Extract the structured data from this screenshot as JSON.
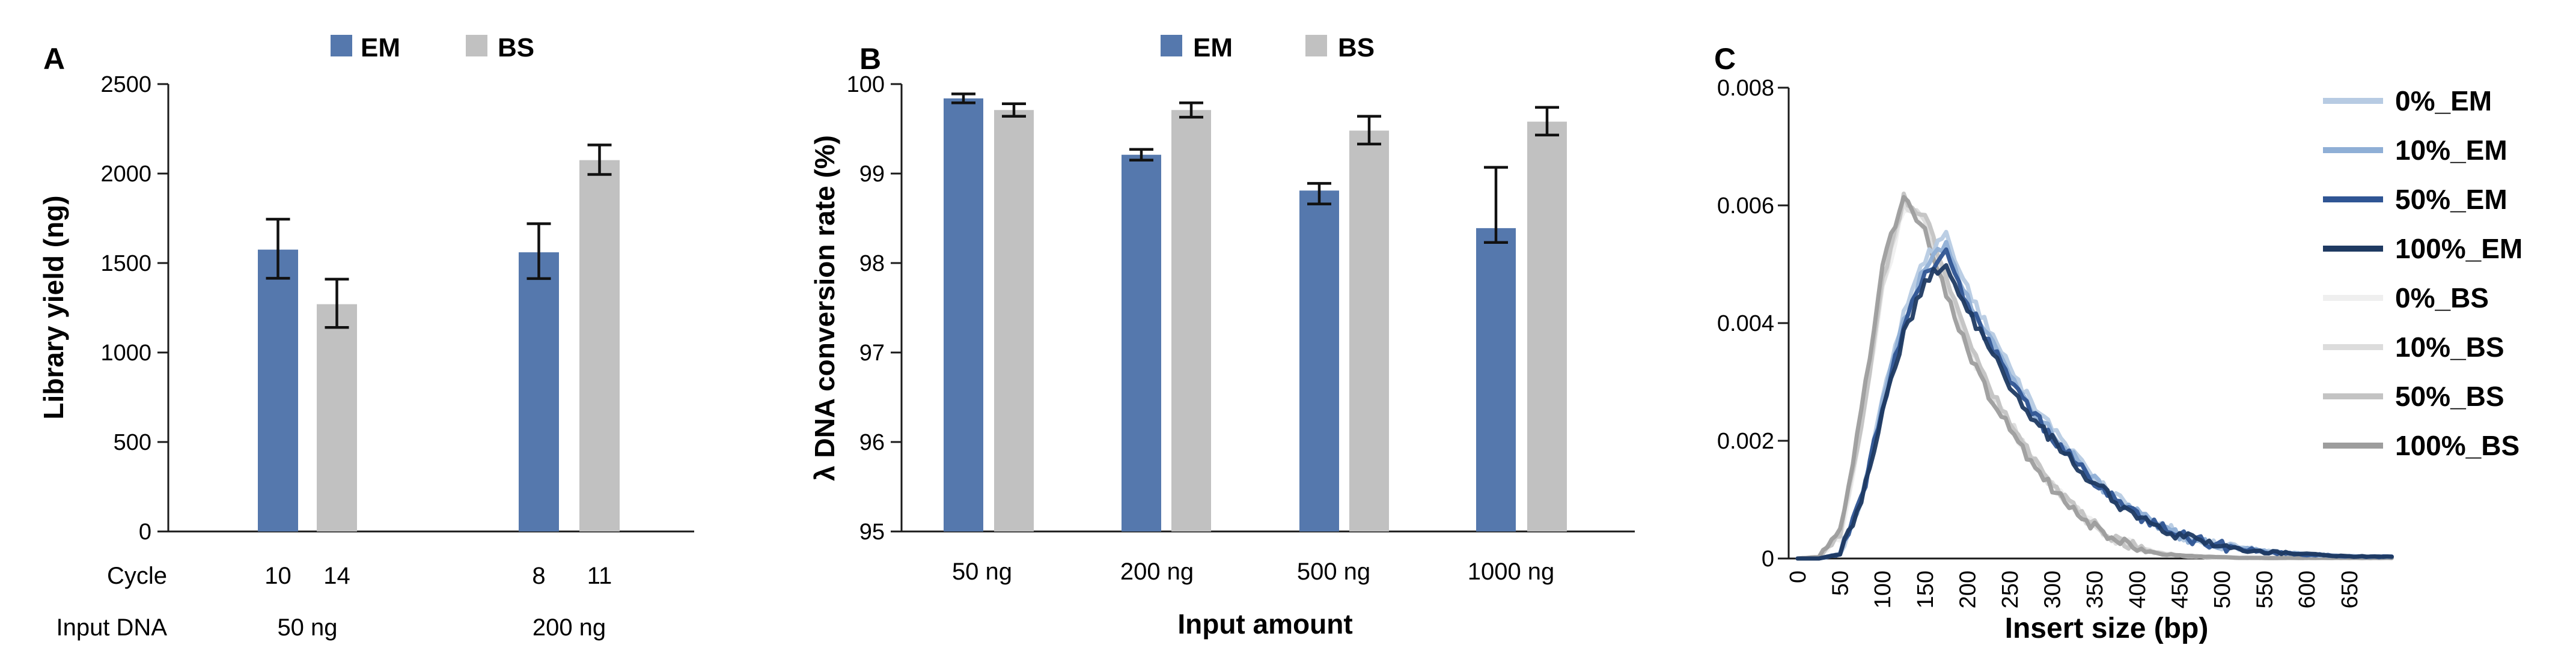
{
  "figure_background": "#ffffff",
  "colors": {
    "em_bar": "#5578ad",
    "bs_bar": "#c1c1c1",
    "error_bar": "#111111",
    "axis": "#1a1a1a",
    "em_lines": [
      "#b7cbe3",
      "#8fafd6",
      "#2f5594",
      "#1f3a62"
    ],
    "bs_lines": [
      "#efefef",
      "#dcdcdc",
      "#c3c3c3",
      "#9d9d9d"
    ]
  },
  "chart_data": [
    {
      "type": "bar",
      "panel_label": "A",
      "ylabel": "Library yield (ng)",
      "ylim": [
        0,
        2500
      ],
      "yticks": [
        0,
        500,
        1000,
        1500,
        2000,
        2500
      ],
      "legend": [
        "EM",
        "BS"
      ],
      "grid": false,
      "legend_position": "top",
      "row_labels": {
        "cycle": "Cycle",
        "input": "Input DNA"
      },
      "cycle_values": [
        "10",
        "14",
        "8",
        "11"
      ],
      "group_labels": [
        "50 ng",
        "200 ng"
      ],
      "series": [
        {
          "name": "EM",
          "values": [
            1575,
            1560
          ],
          "err_hi": [
            1745,
            1720
          ],
          "err_lo": [
            1415,
            1413
          ]
        },
        {
          "name": "BS",
          "values": [
            1270,
            2075
          ],
          "err_hi": [
            1410,
            2160
          ],
          "err_lo": [
            1140,
            1995
          ]
        }
      ]
    },
    {
      "type": "bar",
      "panel_label": "B",
      "ylabel": "λ DNA conversion rate (%)",
      "xlabel": "Input amount",
      "ylim": [
        95,
        100
      ],
      "yticks": [
        95,
        96,
        97,
        98,
        99,
        100
      ],
      "legend": [
        "EM",
        "BS"
      ],
      "grid": false,
      "legend_position": "top",
      "categories": [
        "50 ng",
        "200 ng",
        "500 ng",
        "1000 ng"
      ],
      "series": [
        {
          "name": "EM",
          "values": [
            99.84,
            99.21,
            98.81,
            98.39
          ],
          "err_hi": [
            99.89,
            99.27,
            98.89,
            99.07
          ],
          "err_lo": [
            99.79,
            99.15,
            98.66,
            98.23
          ]
        },
        {
          "name": "BS",
          "values": [
            99.71,
            99.71,
            99.48,
            99.58
          ],
          "err_hi": [
            99.78,
            99.79,
            99.64,
            99.74
          ],
          "err_lo": [
            99.64,
            99.63,
            99.33,
            99.43
          ]
        }
      ]
    },
    {
      "type": "line",
      "panel_label": "C",
      "xlabel": "Insert size (bp)",
      "ylim": [
        0,
        0.008
      ],
      "yticks": [
        0,
        0.002,
        0.004,
        0.006,
        0.008
      ],
      "ytick_labels": [
        "0",
        "0.002",
        "0.004",
        "0.006",
        "0.008"
      ],
      "xticks": [
        0,
        50,
        100,
        150,
        200,
        250,
        300,
        350,
        400,
        450,
        500,
        550,
        600,
        650
      ],
      "grid": false,
      "legend_position": "right",
      "x": [
        0,
        25,
        50,
        75,
        100,
        125,
        150,
        175,
        200,
        225,
        250,
        275,
        300,
        325,
        350,
        375,
        400,
        425,
        450,
        475,
        500,
        525,
        550,
        575,
        600,
        625,
        650,
        675,
        700
      ],
      "series": [
        {
          "name": "0%_EM",
          "family": "em",
          "shade": 0,
          "values": [
            0,
            0,
            8e-05,
            0.00104,
            0.0027,
            0.00416,
            0.0051,
            0.00551,
            0.00458,
            0.0039,
            0.00322,
            0.00265,
            0.00218,
            0.00177,
            0.00138,
            0.00105,
            0.00078,
            0.00057,
            0.00042,
            0.0003,
            0.00022,
            0.00017,
            0.00012,
            9e-05,
            7e-05,
            5e-05,
            4e-05,
            3e-05,
            3e-05
          ]
        },
        {
          "name": "10%_EM",
          "family": "em",
          "shade": 1,
          "values": [
            0,
            0,
            8e-05,
            0.00101,
            0.00263,
            0.00404,
            0.00495,
            0.00535,
            0.00444,
            0.00379,
            0.00313,
            0.00258,
            0.00212,
            0.00172,
            0.00134,
            0.00102,
            0.00076,
            0.00056,
            0.0004,
            0.00029,
            0.00021,
            0.00016,
            0.00012,
            9e-05,
            7e-05,
            5e-05,
            4e-05,
            3e-05,
            3e-05
          ]
        },
        {
          "name": "50%_EM",
          "family": "em",
          "shade": 2,
          "values": [
            0,
            0,
            8e-05,
            0.00099,
            0.00256,
            0.00394,
            0.00483,
            0.00522,
            0.00433,
            0.00369,
            0.00305,
            0.00251,
            0.00207,
            0.00167,
            0.00131,
            0.00099,
            0.00074,
            0.00054,
            0.00039,
            0.00029,
            0.00021,
            0.00016,
            0.00012,
            9e-05,
            7e-05,
            5e-05,
            4e-05,
            3e-05,
            3e-05
          ]
        },
        {
          "name": "100%_EM",
          "family": "em",
          "shade": 3,
          "values": [
            0,
            0,
            8e-05,
            0.00096,
            0.00248,
            0.00382,
            0.00468,
            0.00506,
            0.0042,
            0.00358,
            0.00296,
            0.00244,
            0.00201,
            0.00162,
            0.00127,
            0.00096,
            0.00072,
            0.00053,
            0.00038,
            0.00028,
            0.0002,
            0.00015,
            0.00011,
            9e-05,
            7e-05,
            5e-05,
            4e-05,
            3e-05,
            3e-05
          ]
        },
        {
          "name": "0%_BS",
          "family": "bs",
          "shade": 0,
          "values": [
            0,
            2e-05,
            0.00039,
            0.00213,
            0.00456,
            0.00592,
            0.00563,
            0.00456,
            0.00362,
            0.00281,
            0.00225,
            0.00169,
            0.00123,
            0.00083,
            0.00055,
            0.00032,
            0.00018,
            0.0001,
            5e-05,
            3e-05,
            2e-05,
            1e-05,
            1e-05,
            1e-05,
            1e-05,
            1e-05,
            1e-05,
            1e-05,
            1e-05
          ]
        },
        {
          "name": "10%_BS",
          "family": "bs",
          "shade": 1,
          "values": [
            0,
            2e-05,
            0.0004,
            0.00218,
            0.00465,
            0.00604,
            0.00574,
            0.00465,
            0.00369,
            0.00287,
            0.0023,
            0.00172,
            0.00126,
            0.00085,
            0.00056,
            0.00033,
            0.00019,
            0.0001,
            5e-05,
            3e-05,
            2e-05,
            1e-05,
            1e-05,
            1e-05,
            1e-05,
            1e-05,
            1e-05,
            1e-05,
            1e-05
          ]
        },
        {
          "name": "50%_BS",
          "family": "bs",
          "shade": 2,
          "values": [
            0,
            2e-05,
            0.0004,
            0.00221,
            0.00472,
            0.00613,
            0.00583,
            0.00472,
            0.00375,
            0.00291,
            0.00233,
            0.00175,
            0.00128,
            0.00086,
            0.00057,
            0.00033,
            0.00019,
            0.0001,
            5e-05,
            3e-05,
            2e-05,
            1e-05,
            1e-05,
            1e-05,
            1e-05,
            1e-05,
            1e-05,
            1e-05,
            1e-05
          ]
        },
        {
          "name": "100%_BS",
          "family": "bs",
          "shade": 3,
          "values": [
            0,
            3e-05,
            0.00048,
            0.00245,
            0.005,
            0.0061,
            0.00555,
            0.00448,
            0.00355,
            0.00276,
            0.00221,
            0.00165,
            0.0012,
            0.00081,
            0.00053,
            0.00031,
            0.00017,
            9e-05,
            5e-05,
            3e-05,
            2e-05,
            1e-05,
            1e-05,
            1e-05,
            1e-05,
            1e-05,
            1e-05,
            1e-05,
            1e-05
          ]
        }
      ]
    }
  ]
}
